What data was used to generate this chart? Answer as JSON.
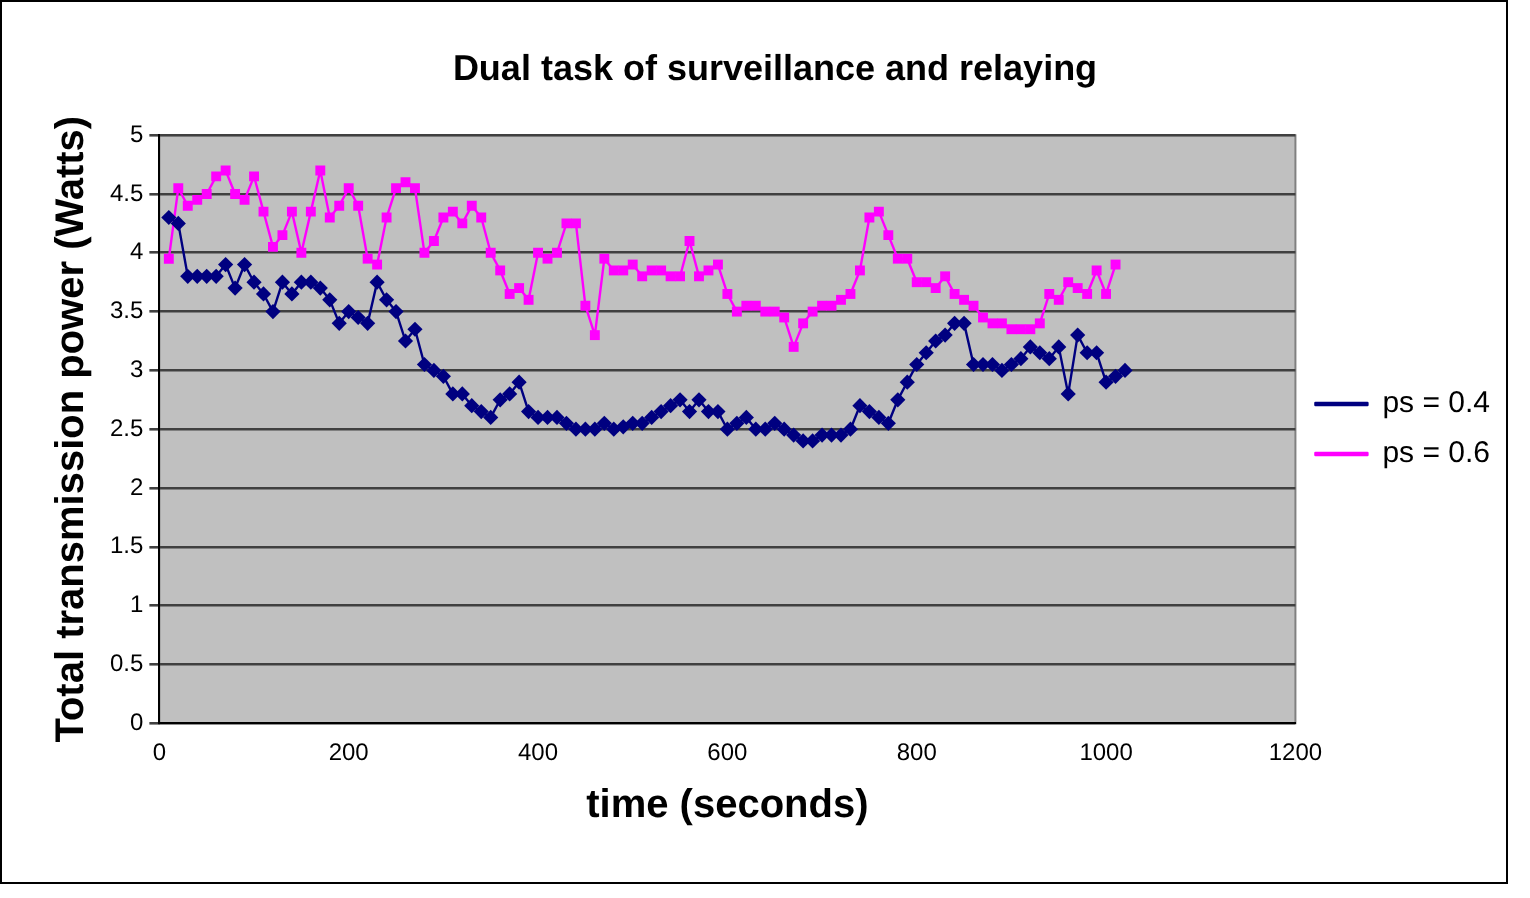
{
  "chart_data": {
    "type": "line",
    "title": "Dual task of surveillance and relaying",
    "xlabel": "time (seconds)",
    "ylabel": "Total transmission power (Watts)",
    "xlim": [
      0,
      1200
    ],
    "xticks": [
      0,
      200,
      400,
      600,
      800,
      1000,
      1200
    ],
    "ylim": [
      0,
      5
    ],
    "yticks": [
      0,
      0.5,
      1,
      1.5,
      2,
      2.5,
      3,
      3.5,
      4,
      4.5,
      5
    ],
    "grid": "y",
    "legend": "right",
    "line_style": "solid",
    "series": [
      {
        "name": "ps = 0.4",
        "color": "#000080",
        "marker": "diamond",
        "values": [
          4.3,
          4.25,
          3.8,
          3.8,
          3.8,
          3.8,
          3.9,
          3.7,
          3.9,
          3.75,
          3.65,
          3.5,
          3.75,
          3.65,
          3.75,
          3.75,
          3.7,
          3.6,
          3.4,
          3.5,
          3.45,
          3.4,
          3.75,
          3.6,
          3.5,
          3.25,
          3.35,
          3.05,
          3.0,
          2.95,
          2.8,
          2.8,
          2.7,
          2.65,
          2.6,
          2.75,
          2.8,
          2.9,
          2.65,
          2.6,
          2.6,
          2.6,
          2.55,
          2.5,
          2.5,
          2.5,
          2.55,
          2.5,
          2.52,
          2.55,
          2.55,
          2.6,
          2.65,
          2.7,
          2.75,
          2.65,
          2.75,
          2.65,
          2.65,
          2.5,
          2.55,
          2.6,
          2.5,
          2.5,
          2.55,
          2.5,
          2.45,
          2.4,
          2.4,
          2.45,
          2.45,
          2.45,
          2.5,
          2.7,
          2.65,
          2.6,
          2.55,
          2.75,
          2.9,
          3.05,
          3.15,
          3.25,
          3.3,
          3.4,
          3.4,
          3.05,
          3.05,
          3.05,
          3.0,
          3.05,
          3.1,
          3.2,
          3.15,
          3.1,
          3.2,
          2.8,
          3.3,
          3.15,
          3.15,
          2.9,
          2.95,
          3.0
        ]
      },
      {
        "name": "ps = 0.6",
        "color": "#ff00ff",
        "marker": "square",
        "x": [
          10,
          20,
          30,
          40,
          50,
          60,
          70,
          80,
          90,
          100,
          110,
          120,
          130,
          140,
          150,
          160,
          170,
          180,
          190,
          200,
          210,
          220,
          230,
          240,
          250,
          260,
          270,
          280,
          290,
          300,
          310,
          320,
          330,
          340,
          350,
          360,
          370,
          380,
          390,
          400,
          410,
          420,
          430,
          440,
          450,
          460,
          470,
          480,
          490,
          500,
          510,
          520,
          530,
          540,
          550,
          560,
          570,
          580,
          590,
          600,
          610,
          620,
          630,
          640,
          650,
          660,
          670,
          680,
          690,
          700,
          710,
          720,
          730,
          740,
          750,
          760,
          770,
          780,
          790,
          800,
          810,
          820,
          830,
          840,
          850,
          860,
          870,
          880,
          890,
          900,
          910,
          920,
          930,
          940,
          950,
          960,
          970,
          980,
          990,
          1000,
          1010
        ],
        "values": [
          3.95,
          4.55,
          4.4,
          4.45,
          4.5,
          4.65,
          4.7,
          4.5,
          4.45,
          4.65,
          4.35,
          4.05,
          4.15,
          4.35,
          4.0,
          4.35,
          4.7,
          4.3,
          4.4,
          4.55,
          4.4,
          3.95,
          3.9,
          4.3,
          4.55,
          4.6,
          4.55,
          4.0,
          4.1,
          4.3,
          4.35,
          4.25,
          4.4,
          4.3,
          4.0,
          3.85,
          3.65,
          3.7,
          3.6,
          4.0,
          3.95,
          4.0,
          4.25,
          4.25,
          3.55,
          3.3,
          3.95,
          3.85,
          3.85,
          3.9,
          3.8,
          3.85,
          3.85,
          3.8,
          3.8,
          4.1,
          3.8,
          3.85,
          3.9,
          3.65,
          3.5,
          3.55,
          3.55,
          3.5,
          3.5,
          3.45,
          3.2,
          3.4,
          3.5,
          3.55,
          3.55,
          3.6,
          3.65,
          3.85,
          4.3,
          4.35,
          4.15,
          3.95,
          3.95,
          3.75,
          3.75,
          3.7,
          3.8,
          3.65,
          3.6,
          3.55,
          3.45,
          3.4,
          3.4,
          3.35,
          3.35,
          3.35,
          3.4,
          3.65,
          3.6,
          3.75,
          3.7,
          3.65,
          3.85,
          3.65,
          3.9
        ]
      }
    ],
    "x": [
      10,
      20,
      30,
      40,
      50,
      60,
      70,
      80,
      90,
      100,
      110,
      120,
      130,
      140,
      150,
      160,
      170,
      180,
      190,
      200,
      210,
      220,
      230,
      240,
      250,
      260,
      270,
      280,
      290,
      300,
      310,
      320,
      330,
      340,
      350,
      360,
      370,
      380,
      390,
      400,
      410,
      420,
      430,
      440,
      450,
      460,
      470,
      480,
      490,
      500,
      510,
      520,
      530,
      540,
      550,
      560,
      570,
      580,
      590,
      600,
      610,
      620,
      630,
      640,
      650,
      660,
      670,
      680,
      690,
      700,
      710,
      720,
      730,
      740,
      750,
      760,
      770,
      780,
      790,
      800,
      810,
      820,
      830,
      840,
      850,
      860,
      870,
      880,
      890,
      900,
      910,
      920,
      930,
      940,
      950,
      960,
      970,
      980,
      990,
      1000,
      1010,
      1020
    ]
  }
}
